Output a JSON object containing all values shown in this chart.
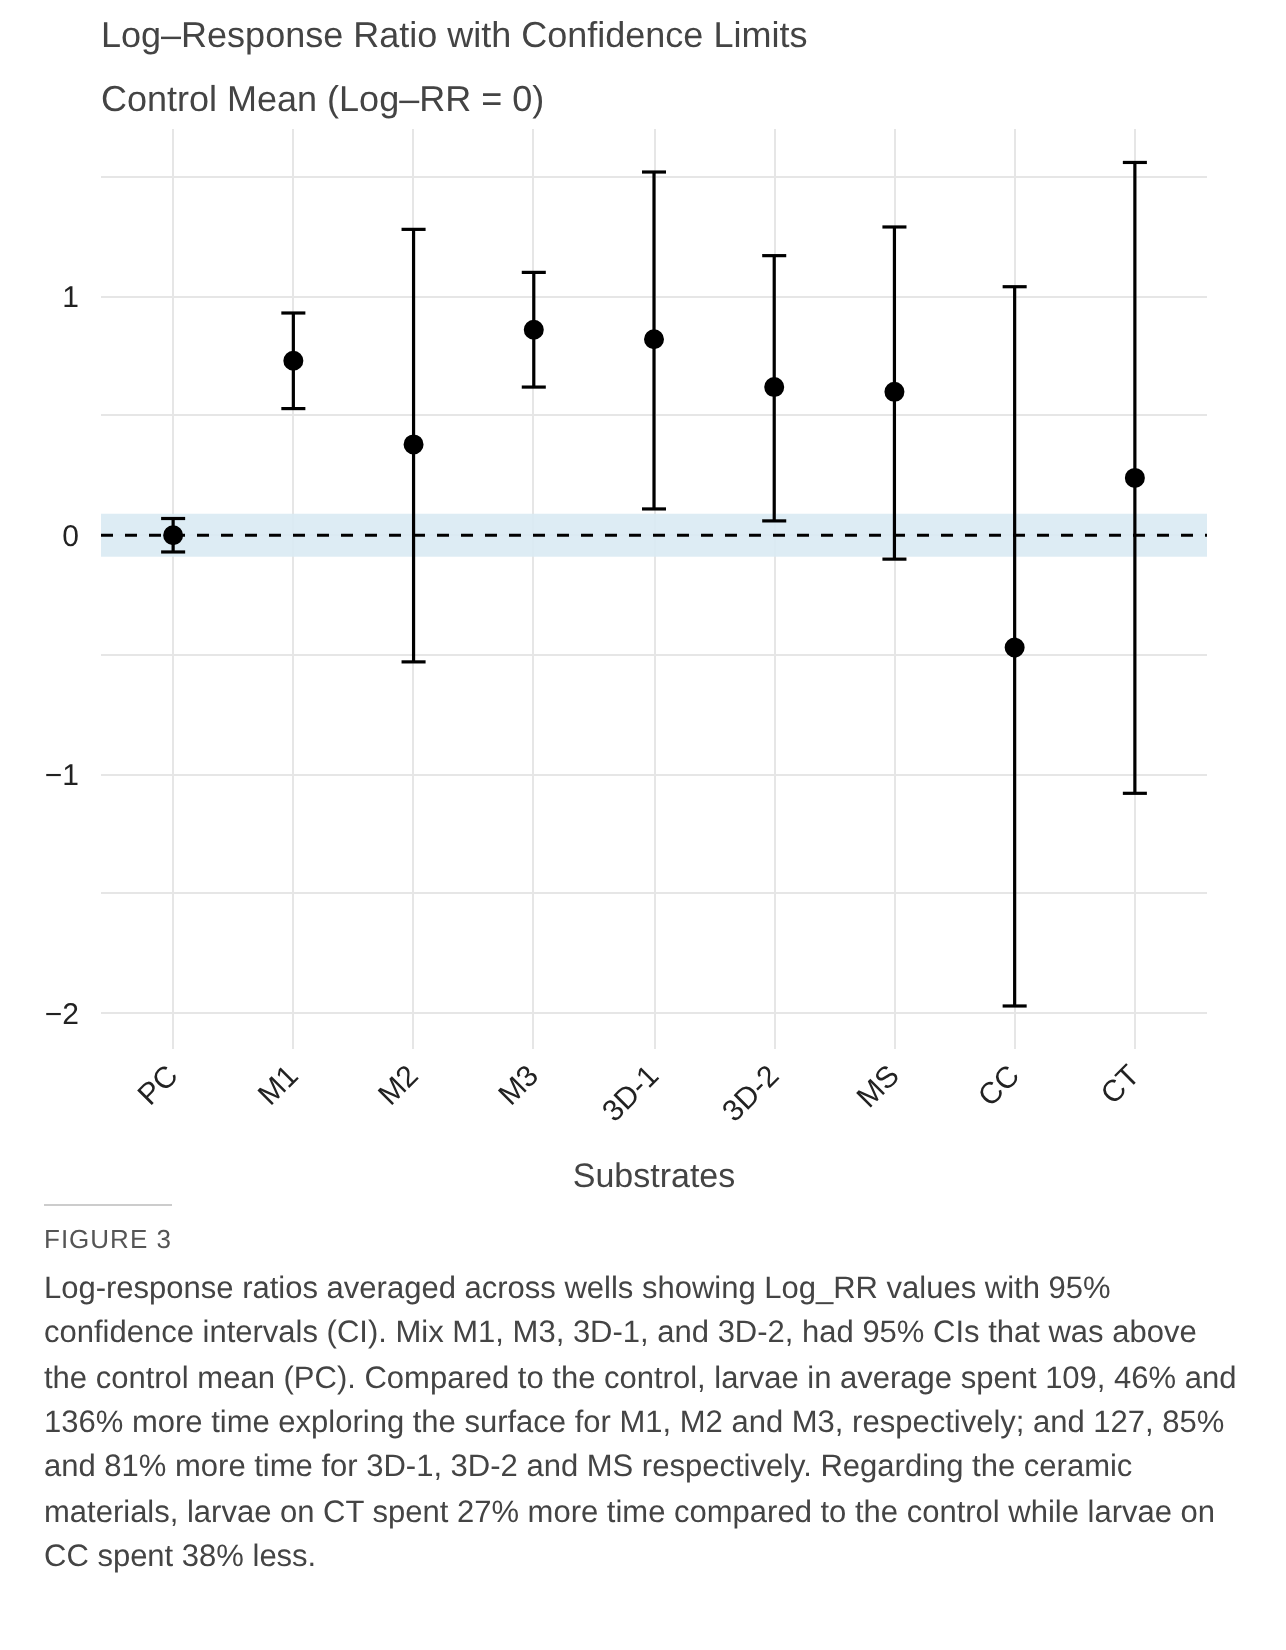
{
  "chart_data": {
    "type": "scatter",
    "title": "Log–Response Ratio with Confidence Limits",
    "subtitle": "Control Mean (Log–RR = 0)",
    "xlabel": "Substrates",
    "categories": [
      "PC",
      "M1",
      "M2",
      "M3",
      "3D-1",
      "3D-2",
      "MS",
      "CC",
      "CT"
    ],
    "series": [
      {
        "color": "#000000",
        "values": [
          0,
          0.73,
          0.38,
          0.86,
          0.82,
          0.62,
          0.6,
          -0.47,
          0.24
        ],
        "errors": [
          [
            -0.07,
            0.07
          ],
          [
            0.53,
            0.93
          ],
          [
            -0.53,
            1.28
          ],
          [
            0.62,
            1.1
          ],
          [
            0.11,
            1.52
          ],
          [
            0.06,
            1.17
          ],
          [
            -0.1,
            1.29
          ],
          [
            -1.97,
            1.04
          ],
          [
            -1.08,
            1.56
          ]
        ]
      }
    ],
    "ylim": [
      -2.15,
      1.7
    ],
    "yticks": [
      {
        "value": -2,
        "label": "−2"
      },
      {
        "value": -1.5,
        "label": null
      },
      {
        "value": -1,
        "label": "−1"
      },
      {
        "value": -0.5,
        "label": null
      },
      0,
      {
        "value": 0.5,
        "label": null
      },
      1,
      {
        "value": 1.5,
        "label": null
      }
    ],
    "ref_lines": [
      {
        "axis": "y",
        "value": 0,
        "color": "#000000",
        "line_style": "dashed"
      }
    ],
    "bands": [
      {
        "axis": "y",
        "from": -0.09,
        "to": 0.09,
        "color": "#d9eaf3"
      }
    ],
    "grid": true,
    "marker": "circle",
    "annotations": [
      "FIGURE 3",
      "Log-response ratios averaged across wells showing Log_RR values with 95% confidence intervals (CI). Mix M1, M3, 3D-1, and 3D-2, had 95% CIs that was above the control mean (PC). Compared to the control, larvae in average spent 109, 46% and 136% more time exploring the surface for M1, M2 and M3, respectively; and 127, 85% and 81% more time for 3D-1, 3D-2 and MS respectively. Regarding the ceramic materials, larvae on CT spent 27% more time compared to the control while larvae on CC spent 38% less."
    ]
  }
}
